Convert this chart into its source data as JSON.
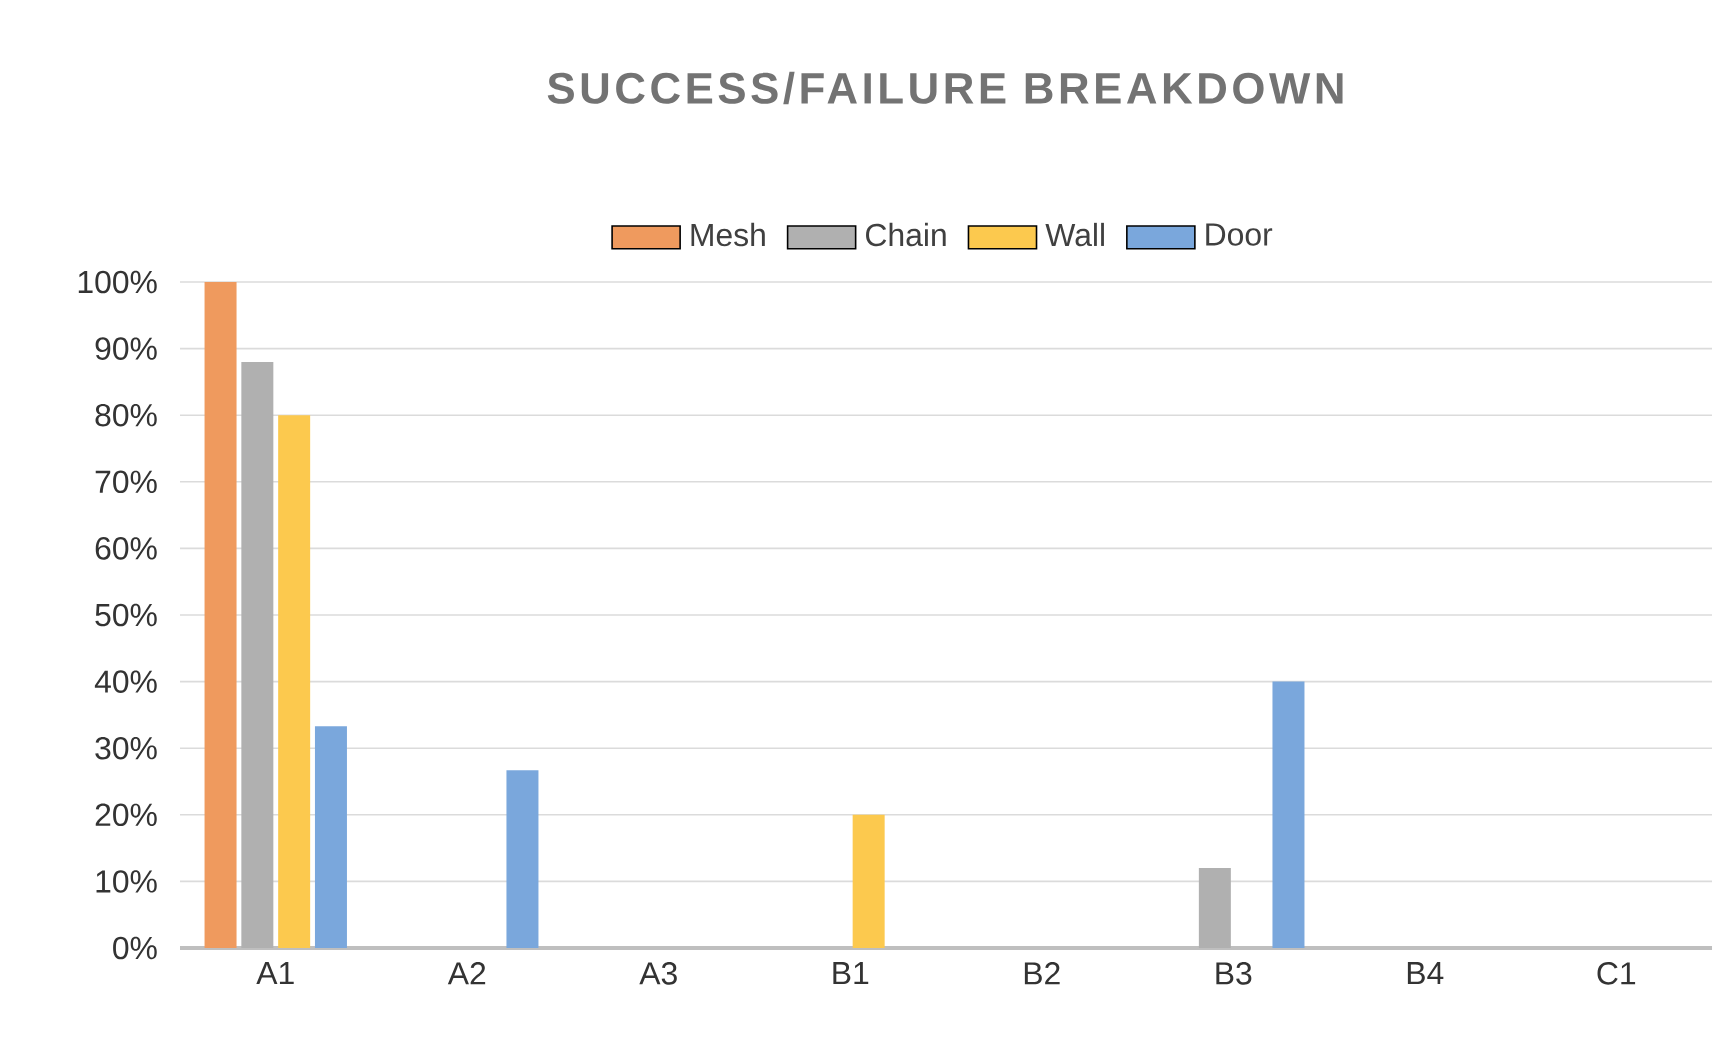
{
  "chart_data": {
    "type": "bar",
    "title": "SUCCESS/FAILURE BREAKDOWN",
    "categories": [
      "A1",
      "A2",
      "A3",
      "B1",
      "B2",
      "B3",
      "B4",
      "C1"
    ],
    "series": [
      {
        "name": "Mesh",
        "color": "#ef9a5e",
        "values": [
          100,
          0,
          0,
          0,
          0,
          0,
          0,
          0
        ]
      },
      {
        "name": "Chain",
        "color": "#b0b0b0",
        "values": [
          88,
          0,
          0,
          0,
          0,
          12,
          0,
          0
        ]
      },
      {
        "name": "Wall",
        "color": "#fcc94e",
        "values": [
          80,
          0,
          0,
          20,
          0,
          0,
          0,
          0
        ]
      },
      {
        "name": "Door",
        "color": "#7aa7dc",
        "values": [
          33.3,
          26.7,
          0,
          0,
          0,
          40,
          0,
          0
        ]
      }
    ],
    "ylim": [
      0,
      100
    ],
    "yticks": [
      {
        "value": 0,
        "label": "0%"
      },
      {
        "value": 10,
        "label": "10%"
      },
      {
        "value": 20,
        "label": "20%"
      },
      {
        "value": 30,
        "label": "30%"
      },
      {
        "value": 40,
        "label": "40%"
      },
      {
        "value": 50,
        "label": "50%"
      },
      {
        "value": 60,
        "label": "60%"
      },
      {
        "value": 70,
        "label": "70%"
      },
      {
        "value": 80,
        "label": "80%"
      },
      {
        "value": 90,
        "label": "90%"
      },
      {
        "value": 100,
        "label": "100%"
      }
    ],
    "grid": "y",
    "legend": "top"
  }
}
